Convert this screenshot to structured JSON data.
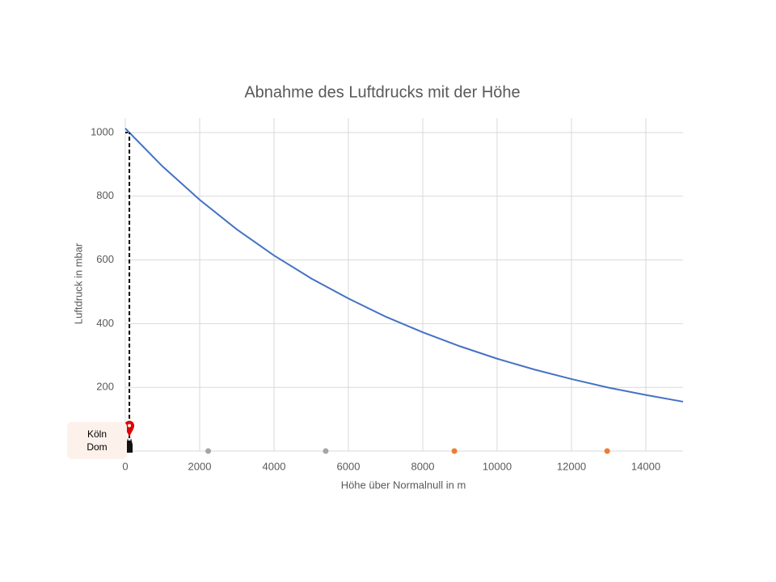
{
  "chart_data": {
    "type": "line",
    "title": "Abnahme des Luftdrucks mit der Höhe",
    "xlabel": "Höhe über Normalnull in m",
    "ylabel": "Luftdruck in mbar",
    "x": [
      0,
      1000,
      2000,
      3000,
      4000,
      5000,
      6000,
      7000,
      8000,
      9000,
      10000,
      11000,
      12000,
      13000,
      14000,
      15000
    ],
    "series": [
      {
        "color": "#4472c4",
        "values": [
          1013,
          894,
          789,
          696,
          614,
          542,
          479,
          422,
          373,
          329,
          290,
          256,
          226,
          199,
          176,
          155
        ]
      }
    ],
    "points": {
      "x": [
        2230,
        5390,
        8850,
        12960
      ],
      "y": [
        0,
        0,
        0,
        0
      ],
      "colors": [
        "#a5a5a5",
        "#a5a5a5",
        "#ed7d31",
        "#ed7d31"
      ]
    },
    "annotation": {
      "text": "Köln Dom",
      "x": 110,
      "y": 75,
      "color": "#e00000"
    },
    "xlim": [
      0,
      15000
    ],
    "xticks": [
      0,
      2000,
      4000,
      6000,
      8000,
      10000,
      12000,
      14000
    ],
    "ylim": [
      0,
      1000
    ],
    "yticks": [
      0,
      200,
      400,
      600,
      800,
      1000
    ],
    "grid": true
  }
}
